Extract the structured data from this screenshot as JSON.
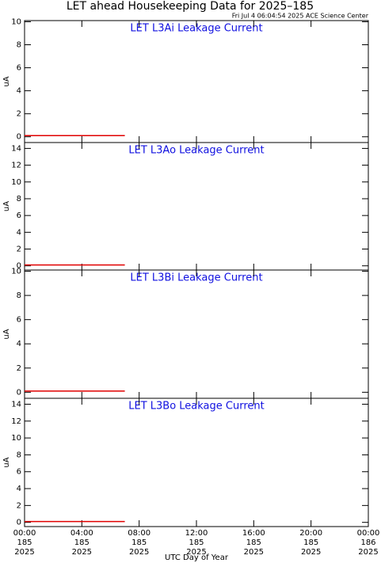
{
  "title": "LET ahead Housekeeping Data for 2025–185",
  "subtitle": "Fri Jul  4 06:04:54 2025 ACE Science Center",
  "xlabel": "UTC Day of Year",
  "xlim": [
    0,
    24
  ],
  "xticks": [
    {
      "value": 0,
      "label": [
        "00:00",
        "185",
        "2025"
      ]
    },
    {
      "value": 4,
      "label": [
        "04:00",
        "185",
        "2025"
      ]
    },
    {
      "value": 8,
      "label": [
        "08:00",
        "185",
        "2025"
      ]
    },
    {
      "value": 12,
      "label": [
        "12:00",
        "185",
        "2025"
      ]
    },
    {
      "value": 16,
      "label": [
        "16:00",
        "185",
        "2025"
      ]
    },
    {
      "value": 20,
      "label": [
        "20:00",
        "185",
        "2025"
      ]
    },
    {
      "value": 24,
      "label": [
        "00:00",
        "186",
        "2025"
      ]
    }
  ],
  "chart_data": [
    {
      "type": "line",
      "title": "LET L3Ai Leakage Current",
      "ylabel": "uA",
      "ylim": [
        -0.5,
        10.1
      ],
      "yticks": [
        0,
        2,
        4,
        6,
        8,
        10
      ],
      "x": [
        0,
        7
      ],
      "series": [
        {
          "color": "#e00000",
          "values": [
            0.1,
            0.1
          ]
        }
      ]
    },
    {
      "type": "line",
      "title": "LET L3Ao Leakage Current",
      "ylabel": "uA",
      "ylim": [
        -0.5,
        14.7
      ],
      "yticks": [
        0,
        2,
        4,
        6,
        8,
        10,
        12,
        14
      ],
      "x": [
        0,
        7
      ],
      "series": [
        {
          "color": "#e00000",
          "values": [
            0.1,
            0.1
          ]
        }
      ]
    },
    {
      "type": "line",
      "title": "LET L3Bi Leakage Current",
      "ylabel": "uA",
      "ylim": [
        -0.5,
        10.1
      ],
      "yticks": [
        0,
        2,
        4,
        6,
        8,
        10
      ],
      "x": [
        0,
        7
      ],
      "series": [
        {
          "color": "#e00000",
          "values": [
            0.1,
            0.1
          ]
        }
      ]
    },
    {
      "type": "line",
      "title": "LET L3Bo Leakage Current",
      "ylabel": "uA",
      "ylim": [
        -0.5,
        14.7
      ],
      "yticks": [
        0,
        2,
        4,
        6,
        8,
        10,
        12,
        14
      ],
      "x": [
        0,
        7
      ],
      "series": [
        {
          "color": "#e00000",
          "values": [
            0.1,
            0.1
          ]
        }
      ]
    }
  ]
}
